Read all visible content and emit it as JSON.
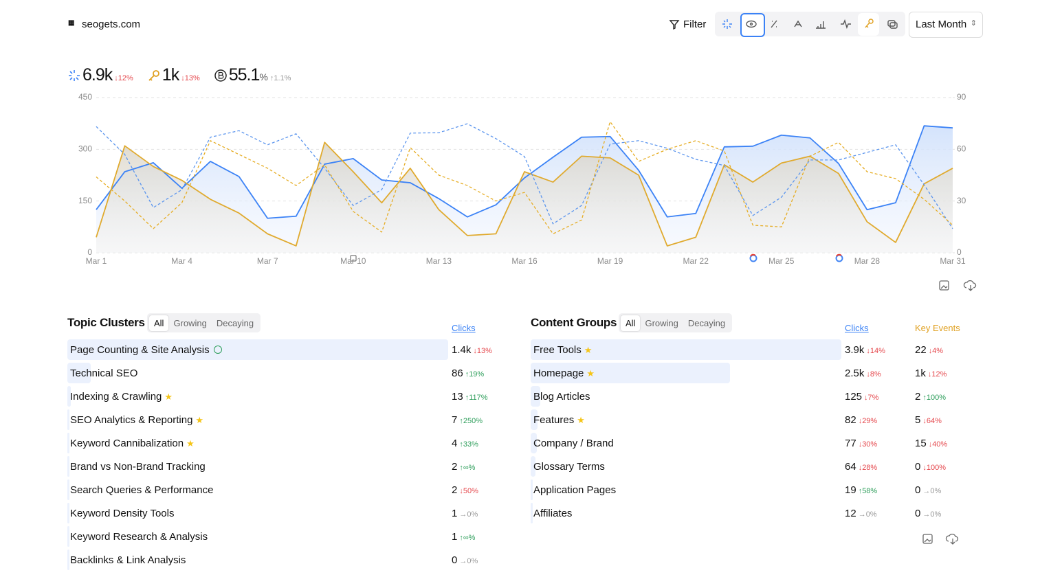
{
  "header": {
    "site": "seogets.com",
    "filter": "Filter",
    "range": "Last Month"
  },
  "metrics": [
    {
      "value": "6.9k",
      "change": "12%",
      "direction": "down",
      "icon": "clicks"
    },
    {
      "value": "1k",
      "change": "13%",
      "direction": "down",
      "icon": "key"
    },
    {
      "value": "55.1",
      "unit": "%",
      "change": "1.1%",
      "direction": "flat-up",
      "icon": "brand"
    }
  ],
  "chart_data": {
    "type": "line",
    "categories": [
      "Mar 1",
      null,
      null,
      "Mar 4",
      null,
      null,
      "Mar 7",
      null,
      null,
      "Mar 10",
      null,
      null,
      "Mar 13",
      null,
      null,
      "Mar 16",
      null,
      null,
      "Mar 19",
      null,
      null,
      "Mar 22",
      null,
      null,
      "Mar 25",
      null,
      null,
      "Mar 28",
      null,
      null,
      "Mar 31"
    ],
    "ylim": [
      0,
      450
    ],
    "yticks": [
      0,
      150,
      300,
      450
    ],
    "y2lim": [
      0,
      90
    ],
    "y2ticks": [
      0,
      30,
      60,
      90
    ],
    "grid": true,
    "series": [
      {
        "color": "#3b82f6",
        "area": true,
        "values": [
          125,
          235,
          261,
          187,
          265,
          221,
          100,
          106,
          257,
          273,
          211,
          203,
          157,
          104,
          139,
          217,
          277,
          335,
          337,
          239,
          104,
          114,
          307,
          309,
          341,
          333,
          259,
          125,
          145,
          368,
          362
        ]
      },
      {
        "color": "#e0aa2e",
        "area": true,
        "axis": "y2",
        "values": [
          9,
          62,
          50,
          42,
          31,
          23,
          11,
          4,
          64,
          47,
          29,
          49,
          25,
          10,
          11,
          47,
          41,
          56,
          55,
          45,
          4,
          9,
          51,
          41,
          52,
          56,
          46,
          18,
          6,
          40,
          49
        ]
      },
      {
        "color": "#5b95ee",
        "dashed": true,
        "values": [
          366,
          285,
          131,
          183,
          335,
          354,
          313,
          345,
          245,
          137,
          183,
          347,
          348,
          374,
          331,
          279,
          84,
          137,
          315,
          325,
          303,
          271,
          253,
          108,
          161,
          269,
          269,
          291,
          313,
          197,
          70
        ]
      },
      {
        "color": "#e6ad24",
        "dashed": true,
        "axis": "y2",
        "values": [
          44,
          30,
          14,
          29,
          65,
          57,
          49,
          39,
          51,
          24,
          12,
          61,
          45,
          39,
          30,
          35,
          11,
          19,
          76,
          53,
          60,
          65,
          59,
          16,
          15,
          56,
          64,
          47,
          43,
          31,
          16
        ]
      }
    ]
  },
  "topic_clusters": {
    "title": "Topic Clusters",
    "tabs": [
      "All",
      "Growing",
      "Decaying"
    ],
    "active_tab": 0,
    "columns": [
      "Clicks"
    ],
    "rows": [
      {
        "name": "Page Counting & Site Analysis",
        "icon": "clock",
        "cells": [
          {
            "value": "1.4k",
            "change": "13%",
            "direction": "down"
          }
        ]
      },
      {
        "name": "Technical SEO",
        "cells": [
          {
            "value": "86",
            "change": "19%",
            "direction": "up"
          }
        ]
      },
      {
        "name": "Indexing & Crawling",
        "icon": "star",
        "cells": [
          {
            "value": "13",
            "change": "117%",
            "direction": "up"
          }
        ]
      },
      {
        "name": "SEO Analytics & Reporting",
        "icon": "star",
        "cells": [
          {
            "value": "7",
            "change": "250%",
            "direction": "up"
          }
        ]
      },
      {
        "name": "Keyword Cannibalization",
        "icon": "star",
        "cells": [
          {
            "value": "4",
            "change": "33%",
            "direction": "up"
          }
        ]
      },
      {
        "name": "Brand vs Non-Brand Tracking",
        "cells": [
          {
            "value": "2",
            "change": "∞%",
            "direction": "up"
          }
        ]
      },
      {
        "name": "Search Queries & Performance",
        "cells": [
          {
            "value": "2",
            "change": "50%",
            "direction": "down"
          }
        ]
      },
      {
        "name": "Keyword Density Tools",
        "cells": [
          {
            "value": "1",
            "change": "0%",
            "direction": "flat"
          }
        ]
      },
      {
        "name": "Keyword Research & Analysis",
        "cells": [
          {
            "value": "1",
            "change": "∞%",
            "direction": "up"
          }
        ]
      },
      {
        "name": "Backlinks & Link Analysis",
        "cells": [
          {
            "value": "0",
            "change": "0%",
            "direction": "flat"
          }
        ]
      }
    ]
  },
  "content_groups": {
    "title": "Content Groups",
    "tabs": [
      "All",
      "Growing",
      "Decaying"
    ],
    "active_tab": 0,
    "columns": [
      "Clicks",
      "Key Events"
    ],
    "rows": [
      {
        "name": "Free Tools",
        "icon": "star",
        "cells": [
          {
            "value": "3.9k",
            "change": "14%",
            "direction": "down"
          },
          {
            "value": "22",
            "change": "4%",
            "direction": "down"
          }
        ]
      },
      {
        "name": "Homepage",
        "icon": "star",
        "cells": [
          {
            "value": "2.5k",
            "change": "8%",
            "direction": "down"
          },
          {
            "value": "1k",
            "change": "12%",
            "direction": "down"
          }
        ]
      },
      {
        "name": "Blog Articles",
        "cells": [
          {
            "value": "125",
            "change": "7%",
            "direction": "down"
          },
          {
            "value": "2",
            "change": "100%",
            "direction": "up"
          }
        ]
      },
      {
        "name": "Features",
        "icon": "star",
        "cells": [
          {
            "value": "82",
            "change": "29%",
            "direction": "down"
          },
          {
            "value": "5",
            "change": "64%",
            "direction": "down"
          }
        ]
      },
      {
        "name": "Company / Brand",
        "cells": [
          {
            "value": "77",
            "change": "30%",
            "direction": "down"
          },
          {
            "value": "15",
            "change": "40%",
            "direction": "down"
          }
        ]
      },
      {
        "name": "Glossary Terms",
        "cells": [
          {
            "value": "64",
            "change": "28%",
            "direction": "down"
          },
          {
            "value": "0",
            "change": "100%",
            "direction": "down"
          }
        ]
      },
      {
        "name": "Application Pages",
        "cells": [
          {
            "value": "19",
            "change": "58%",
            "direction": "up"
          },
          {
            "value": "0",
            "change": "0%",
            "direction": "flat"
          }
        ]
      },
      {
        "name": "Affiliates",
        "cells": [
          {
            "value": "12",
            "change": "0%",
            "direction": "flat"
          },
          {
            "value": "0",
            "change": "0%",
            "direction": "flat"
          }
        ]
      }
    ]
  }
}
